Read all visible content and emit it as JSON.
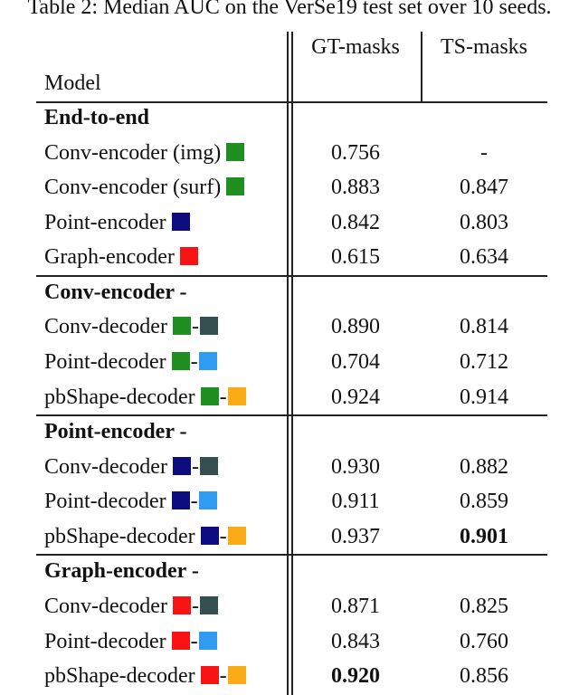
{
  "caption": "Table 2: Median AUC on the VerSe19 test set over 10 seeds.",
  "table": {
    "header": [
      "Model",
      "GT-masks",
      "TS-masks"
    ],
    "sections": [
      {
        "title": "End-to-end",
        "rows": [
          [
            "Conv-encoder (img)",
            "0.756",
            "-"
          ],
          [
            "Conv-encoder (surf)",
            "0.883",
            "0.847"
          ],
          [
            "Point-encoder",
            "0.842",
            "0.803"
          ],
          [
            "Graph-encoder",
            "0.615",
            "0.634"
          ]
        ]
      },
      {
        "title": "Conv-encoder -",
        "rows": [
          [
            "Conv-decoder",
            "0.890",
            "0.814"
          ],
          [
            "Point-decoder",
            "0.704",
            "0.712"
          ],
          [
            "pbShape-decoder",
            "0.924",
            "0.914"
          ]
        ]
      },
      {
        "title": "Point-encoder -",
        "rows": [
          [
            "Conv-decoder",
            "0.930",
            "0.882"
          ],
          [
            "Point-decoder",
            "0.911",
            "0.859"
          ],
          [
            "pbShape-decoder",
            "0.937",
            "0.901"
          ]
        ]
      },
      {
        "title": "Graph-encoder -",
        "rows": [
          [
            "Conv-decoder",
            "0.871",
            "0.825"
          ],
          [
            "Point-decoder",
            "0.843",
            "0.760"
          ],
          [
            "pbShape-decoder",
            "0.920",
            "0.856"
          ]
        ]
      }
    ]
  }
}
